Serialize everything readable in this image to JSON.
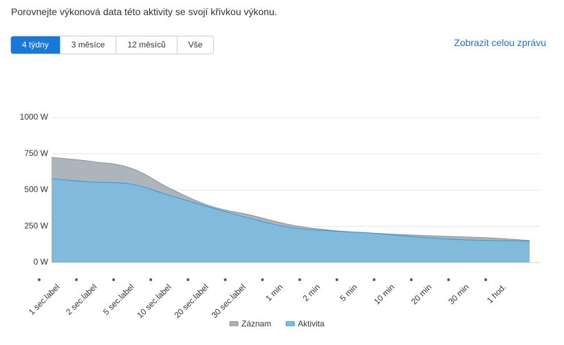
{
  "header": {
    "title": "Porovnejte výkonová data této aktivity se svojí křivkou výkonu."
  },
  "tabs": [
    "4 týdny",
    "3 měsíce",
    "12 měsíců",
    "Vše"
  ],
  "link": "Zobrazit celou zprávu",
  "chart_data": {
    "type": "area",
    "categories": [
      "1 sec.label",
      "2 sec.label",
      "5 sec.label",
      "10 sec.label",
      "20 sec.label",
      "30 sec.label",
      "1 min",
      "2 min",
      "5 min",
      "10 min",
      "20 min",
      "30 min",
      "1 hod."
    ],
    "series": [
      {
        "name": "Záznam",
        "color": "#a9b0b8",
        "values": [
          725,
          697,
          650,
          507,
          389,
          327,
          260,
          223,
          204,
          190,
          180,
          170,
          152
        ]
      },
      {
        "name": "Aktivita",
        "color": "#7fbbdc",
        "values": [
          578,
          555,
          540,
          460,
          379,
          303,
          242,
          218,
          204,
          180,
          161,
          152,
          147
        ]
      }
    ],
    "ylim": [
      0,
      1000
    ],
    "yticks": [
      {
        "value": 0,
        "label": "0 W"
      },
      {
        "value": 250,
        "label": "250 W"
      },
      {
        "value": 500,
        "label": "500 W"
      },
      {
        "value": 750,
        "label": "750 W"
      },
      {
        "value": 1000,
        "label": "1000 W"
      }
    ],
    "grid": true,
    "legend": "bottom"
  }
}
